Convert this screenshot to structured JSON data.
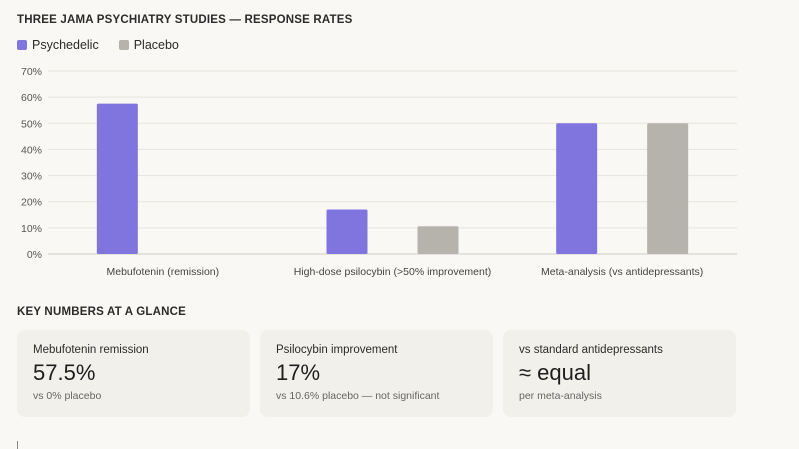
{
  "chart_data": {
    "type": "bar",
    "title": "THREE JAMA PSYCHIATRY STUDIES — RESPONSE RATES",
    "categories": [
      "Mebufotenin (remission)",
      "High-dose psilocybin (>50% improvement)",
      "Meta-analysis (vs antidepressants)"
    ],
    "series": [
      {
        "name": "Psychedelic",
        "color": "#8075de",
        "values": [
          57.5,
          17,
          50
        ]
      },
      {
        "name": "Placebo",
        "color": "#b5b3ab",
        "values": [
          0,
          10.6,
          50
        ]
      }
    ],
    "ylim": [
      0,
      70
    ],
    "yticks": [
      0,
      10,
      20,
      30,
      40,
      50,
      60,
      70
    ],
    "ytick_suffix": "%",
    "grid": true,
    "legend_position": "top-left",
    "xlabel": "",
    "ylabel": ""
  },
  "summary": {
    "title": "KEY NUMBERS AT A GLANCE",
    "cards": [
      {
        "label": "Mebufotenin remission",
        "value": "57.5%",
        "note": "vs 0% placebo"
      },
      {
        "label": "Psilocybin improvement",
        "value": "17%",
        "note": "vs 10.6% placebo — not significant"
      },
      {
        "label": "vs standard antidepressants",
        "value": "≈ equal",
        "note": "per meta-analysis"
      }
    ]
  }
}
